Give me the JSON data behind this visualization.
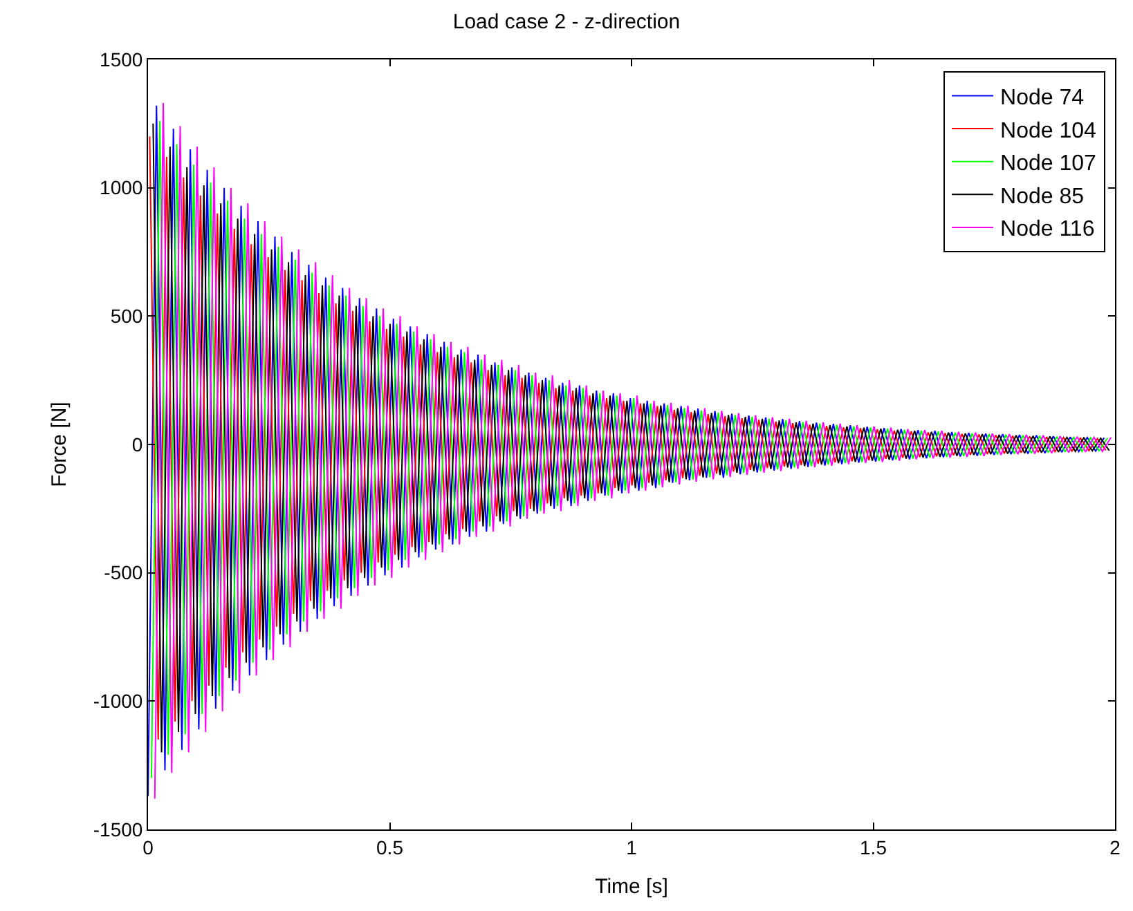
{
  "chart_data": {
    "type": "line",
    "title": "Load case 2 - z-direction",
    "xlabel": "Time [s]",
    "ylabel": "Force [N]",
    "xlim": [
      0,
      2
    ],
    "xticks": [
      0,
      0.5,
      1,
      1.5,
      2
    ],
    "ylim": [
      -1500,
      1500
    ],
    "yticks": [
      -1500,
      -1000,
      -500,
      0,
      500,
      1000,
      1500
    ],
    "grid": false,
    "legend": "top right",
    "marker": "none",
    "line_style": "solid",
    "series": [
      {
        "name": "Node 74",
        "color": "#0000ff",
        "x": [
          0,
          0.0175,
          0.035,
          0.0525,
          0.07,
          0.0875,
          0.105,
          0.1225,
          0.14,
          0.1575,
          0.175,
          0.1925,
          0.21,
          0.2275,
          0.245,
          0.2625,
          0.28,
          0.2975,
          0.315,
          0.3325,
          0.35,
          0.3675,
          0.385,
          0.4025,
          0.42,
          0.4375,
          0.455,
          0.4725,
          0.49,
          0.5075,
          0.525,
          0.5425,
          0.56,
          0.5775,
          0.595,
          0.6125,
          0.63,
          0.6475,
          0.665,
          0.6825,
          0.7,
          0.7175,
          0.735,
          0.7525,
          0.77,
          0.7875,
          0.805,
          0.8225,
          0.84,
          0.8575,
          0.875,
          0.8925,
          0.91,
          0.9275,
          0.945,
          0.9625,
          0.98,
          0.9975,
          1.015,
          1.0325,
          1.05,
          1.0675,
          1.085,
          1.1025,
          1.12,
          1.1375,
          1.155,
          1.1725,
          1.19,
          1.2075,
          1.225,
          1.2425,
          1.26,
          1.2775,
          1.295,
          1.3125,
          1.33,
          1.3475,
          1.365,
          1.3825,
          1.4,
          1.4175,
          1.435,
          1.4525,
          1.47,
          1.4875,
          1.505,
          1.5225,
          1.54,
          1.5575,
          1.575,
          1.5925,
          1.61,
          1.6275,
          1.645,
          1.6625,
          1.68,
          1.6975,
          1.715,
          1.7325,
          1.75,
          1.7675,
          1.785,
          1.8025,
          1.82,
          1.8375,
          1.855,
          1.8725,
          1.89,
          1.9075,
          1.925,
          1.9425,
          1.96,
          1.9775
        ],
        "values": [
          -1370,
          1320,
          -1270,
          1230,
          -1190,
          1150,
          -1110,
          1070,
          -1030,
          1000,
          -960,
          930,
          -900,
          870,
          -840,
          810,
          -780,
          750,
          -730,
          700,
          -680,
          650,
          -630,
          610,
          -590,
          570,
          -550,
          530,
          -510,
          490,
          -480,
          460,
          -440,
          430,
          -410,
          400,
          -390,
          370,
          -360,
          350,
          -340,
          320,
          -310,
          300,
          -290,
          280,
          -270,
          260,
          -250,
          240,
          -240,
          230,
          -220,
          210,
          -200,
          200,
          -190,
          180,
          -180,
          170,
          -170,
          160,
          -150,
          150,
          -140,
          140,
          -130,
          130,
          -130,
          120,
          -117,
          113,
          -109,
          105,
          -102,
          99,
          -95,
          91,
          -88,
          85,
          -82,
          80,
          -77,
          75,
          -71,
          69,
          -67,
          64,
          -62,
          60,
          -58,
          56,
          -54,
          53,
          -50,
          48,
          -47,
          45,
          -44,
          42,
          -41,
          40,
          -38,
          37,
          -36,
          35,
          -34,
          32,
          -30,
          29,
          -28,
          27,
          -26,
          26
        ]
      },
      {
        "name": "Node 104",
        "color": "#ff0000",
        "x": [
          0.0035,
          0.021,
          0.0385,
          0.056,
          0.0735,
          0.091,
          0.1085,
          0.126,
          0.1435,
          0.161,
          0.1785,
          0.196,
          0.2135,
          0.231,
          0.2485,
          0.266,
          0.2835,
          0.301,
          0.3185,
          0.336,
          0.3535,
          0.371,
          0.3885,
          0.406,
          0.4235,
          0.441,
          0.4585,
          0.476,
          0.4935,
          0.511,
          0.5285,
          0.546,
          0.5635,
          0.581,
          0.5985,
          0.616,
          0.6335,
          0.651,
          0.6685,
          0.686,
          0.7035,
          0.721,
          0.7385,
          0.756,
          0.7735,
          0.791,
          0.8085,
          0.826,
          0.8435,
          0.861,
          0.8785,
          0.896,
          0.9135,
          0.931,
          0.9485,
          0.966,
          0.9835,
          1.001,
          1.0185,
          1.036,
          1.0535,
          1.071,
          1.0885,
          1.106,
          1.1235,
          1.141,
          1.1585,
          1.176,
          1.1935,
          1.211,
          1.2285,
          1.246,
          1.2635,
          1.281,
          1.2985,
          1.316,
          1.3335,
          1.351,
          1.3685,
          1.386,
          1.4035,
          1.421,
          1.4385,
          1.456,
          1.4735,
          1.491,
          1.5085,
          1.526,
          1.5435,
          1.561,
          1.5785,
          1.596,
          1.6135,
          1.631,
          1.6485,
          1.666,
          1.6835,
          1.701,
          1.7185,
          1.736,
          1.7535,
          1.771,
          1.7885,
          1.806,
          1.8235,
          1.841,
          1.8585,
          1.876,
          1.8935,
          1.911,
          1.9285,
          1.946,
          1.9635,
          1.981
        ],
        "values": [
          1200,
          -1150,
          1120,
          -1080,
          1040,
          -1000,
          970,
          -940,
          900,
          -870,
          840,
          -810,
          780,
          -760,
          730,
          -710,
          680,
          -660,
          640,
          -610,
          590,
          -570,
          550,
          -530,
          520,
          -500,
          480,
          -460,
          450,
          -430,
          420,
          -400,
          390,
          -380,
          360,
          -350,
          340,
          -330,
          320,
          -300,
          290,
          -280,
          270,
          -260,
          260,
          -250,
          240,
          -230,
          220,
          -210,
          210,
          -200,
          190,
          -190,
          180,
          -170,
          170,
          -160,
          160,
          -150,
          150,
          -140,
          135,
          -131,
          126,
          -122,
          118,
          -114,
          110,
          -106,
          102,
          -99,
          96,
          -92,
          89,
          -86,
          83,
          -80,
          77,
          -75,
          72,
          -70,
          67,
          -65,
          63,
          -61,
          59,
          -56,
          54,
          -52,
          51,
          -49,
          47,
          -46,
          44,
          -42,
          41,
          -40,
          39,
          -37,
          36,
          -35,
          33,
          -32,
          31,
          -30,
          29,
          -28,
          27,
          -26,
          25,
          -24,
          23,
          -23
        ]
      },
      {
        "name": "Node 107",
        "color": "#00ff00",
        "x": [
          0.007,
          0.0245,
          0.042,
          0.0595,
          0.077,
          0.0945,
          0.112,
          0.1295,
          0.147,
          0.1645,
          0.182,
          0.1995,
          0.217,
          0.2345,
          0.252,
          0.2695,
          0.287,
          0.3045,
          0.322,
          0.3395,
          0.357,
          0.3745,
          0.392,
          0.4095,
          0.427,
          0.4445,
          0.462,
          0.4795,
          0.497,
          0.5145,
          0.532,
          0.5495,
          0.567,
          0.5845,
          0.602,
          0.6195,
          0.637,
          0.6545,
          0.672,
          0.6895,
          0.707,
          0.7245,
          0.742,
          0.7595,
          0.777,
          0.7945,
          0.812,
          0.8295,
          0.847,
          0.8645,
          0.882,
          0.8995,
          0.917,
          0.9345,
          0.952,
          0.9695,
          0.987,
          1.0045,
          1.022,
          1.0395,
          1.057,
          1.0745,
          1.092,
          1.1095,
          1.127,
          1.1445,
          1.162,
          1.1795,
          1.197,
          1.2145,
          1.232,
          1.2495,
          1.267,
          1.2845,
          1.302,
          1.3195,
          1.337,
          1.3545,
          1.372,
          1.3895,
          1.407,
          1.4245,
          1.442,
          1.4595,
          1.477,
          1.4945,
          1.512,
          1.5295,
          1.547,
          1.5645,
          1.582,
          1.5995,
          1.617,
          1.6345,
          1.652,
          1.6695,
          1.687,
          1.7045,
          1.722,
          1.7395,
          1.757,
          1.7745,
          1.792,
          1.8095,
          1.827,
          1.8445,
          1.862,
          1.8795,
          1.897,
          1.9145,
          1.932,
          1.9495,
          1.967,
          1.9845
        ],
        "values": [
          -1300,
          1260,
          -1210,
          1170,
          -1130,
          1090,
          -1050,
          1020,
          -980,
          950,
          -920,
          880,
          -850,
          820,
          -800,
          770,
          -740,
          720,
          -690,
          670,
          -650,
          620,
          -600,
          580,
          -560,
          540,
          -520,
          500,
          -490,
          470,
          -450,
          440,
          -420,
          410,
          -390,
          380,
          -370,
          360,
          -340,
          330,
          -320,
          310,
          -300,
          290,
          -280,
          270,
          -260,
          250,
          -240,
          230,
          -230,
          220,
          -210,
          200,
          -200,
          190,
          -180,
          180,
          -170,
          160,
          -158,
          153,
          -147,
          142,
          -137,
          133,
          -128,
          124,
          -120,
          115,
          -111,
          108,
          -104,
          100,
          -97,
          94,
          -90,
          87,
          -84,
          81,
          -78,
          76,
          -73,
          71,
          -68,
          66,
          -64,
          61,
          -59,
          57,
          -55,
          53,
          -51,
          50,
          -48,
          46,
          -45,
          43,
          -42,
          40,
          -39,
          38,
          -36,
          35,
          -34,
          33,
          -32,
          30,
          -29,
          28,
          -27,
          26,
          -25,
          25
        ]
      },
      {
        "name": "Node 85",
        "color": "#000000",
        "x": [
          0.0105,
          0.028,
          0.0455,
          0.063,
          0.0805,
          0.098,
          0.1155,
          0.133,
          0.1505,
          0.168,
          0.1855,
          0.203,
          0.2205,
          0.238,
          0.2555,
          0.273,
          0.2905,
          0.308,
          0.3255,
          0.343,
          0.3605,
          0.378,
          0.3955,
          0.413,
          0.4305,
          0.448,
          0.4655,
          0.483,
          0.5005,
          0.518,
          0.5355,
          0.553,
          0.5705,
          0.588,
          0.6055,
          0.623,
          0.6405,
          0.658,
          0.6755,
          0.693,
          0.7105,
          0.728,
          0.7455,
          0.763,
          0.7805,
          0.798,
          0.8155,
          0.833,
          0.8505,
          0.868,
          0.8855,
          0.903,
          0.9205,
          0.938,
          0.9555,
          0.973,
          0.9905,
          1.008,
          1.0255,
          1.043,
          1.0605,
          1.078,
          1.0955,
          1.113,
          1.1305,
          1.148,
          1.1655,
          1.183,
          1.2005,
          1.218,
          1.2355,
          1.253,
          1.2705,
          1.288,
          1.3055,
          1.323,
          1.3405,
          1.358,
          1.3755,
          1.393,
          1.4105,
          1.428,
          1.4455,
          1.463,
          1.4805,
          1.498,
          1.5155,
          1.533,
          1.5505,
          1.568,
          1.5855,
          1.603,
          1.6205,
          1.638,
          1.6555,
          1.673,
          1.6905,
          1.708,
          1.7255,
          1.743,
          1.7605,
          1.778,
          1.7955,
          1.813,
          1.8305,
          1.848,
          1.8655,
          1.883,
          1.9005,
          1.918,
          1.9355,
          1.953,
          1.9705,
          1.988
        ],
        "values": [
          1250,
          -1200,
          1160,
          -1120,
          1080,
          -1050,
          1010,
          -980,
          940,
          -910,
          880,
          -850,
          820,
          -790,
          760,
          -740,
          710,
          -690,
          660,
          -640,
          620,
          -600,
          580,
          -560,
          540,
          -520,
          500,
          -480,
          470,
          -450,
          440,
          -420,
          410,
          -390,
          380,
          -370,
          350,
          -340,
          330,
          -320,
          310,
          -300,
          290,
          -280,
          270,
          -260,
          250,
          -240,
          230,
          -220,
          220,
          -210,
          200,
          -190,
          190,
          -180,
          170,
          -170,
          160,
          -160,
          152,
          -147,
          141,
          -136,
          132,
          -128,
          123,
          -119,
          115,
          -110,
          107,
          -104,
          100,
          -96,
          93,
          -90,
          86,
          -84,
          81,
          -78,
          75,
          -73,
          70,
          -68,
          65,
          -63,
          61,
          -59,
          57,
          -55,
          53,
          -51,
          49,
          -48,
          46,
          -44,
          43,
          -41,
          40,
          -38,
          37,
          -36,
          35,
          -34,
          33,
          -32,
          31,
          -29,
          28,
          -27,
          26,
          -25,
          24,
          -24
        ]
      },
      {
        "name": "Node 116",
        "color": "#ff00ff",
        "x": [
          0.014,
          0.0315,
          0.049,
          0.0665,
          0.084,
          0.1015,
          0.119,
          0.1365,
          0.154,
          0.1715,
          0.189,
          0.2065,
          0.224,
          0.2415,
          0.259,
          0.2765,
          0.294,
          0.3115,
          0.329,
          0.3465,
          0.364,
          0.3815,
          0.399,
          0.4165,
          0.434,
          0.4515,
          0.469,
          0.4865,
          0.504,
          0.5215,
          0.539,
          0.5565,
          0.574,
          0.5915,
          0.609,
          0.6265,
          0.644,
          0.6615,
          0.679,
          0.6965,
          0.714,
          0.7315,
          0.749,
          0.7665,
          0.784,
          0.8015,
          0.819,
          0.8365,
          0.854,
          0.8715,
          0.889,
          0.9065,
          0.924,
          0.9415,
          0.959,
          0.9765,
          0.994,
          1.0115,
          1.029,
          1.0465,
          1.064,
          1.0815,
          1.099,
          1.1165,
          1.134,
          1.1515,
          1.169,
          1.1865,
          1.204,
          1.2215,
          1.239,
          1.2565,
          1.274,
          1.2915,
          1.309,
          1.3265,
          1.344,
          1.3615,
          1.379,
          1.3965,
          1.414,
          1.4315,
          1.449,
          1.4665,
          1.484,
          1.5015,
          1.519,
          1.5365,
          1.554,
          1.5715,
          1.589,
          1.6065,
          1.624,
          1.6415,
          1.659,
          1.6765,
          1.694,
          1.7115,
          1.729,
          1.7465,
          1.764,
          1.7815,
          1.799,
          1.8165,
          1.834,
          1.8515,
          1.869,
          1.8865,
          1.904,
          1.9215,
          1.939,
          1.9565,
          1.974,
          1.9915
        ],
        "values": [
          -1380,
          1330,
          -1280,
          1240,
          -1200,
          1160,
          -1120,
          1080,
          -1040,
          1000,
          -970,
          940,
          -900,
          870,
          -840,
          810,
          -790,
          760,
          -730,
          710,
          -680,
          660,
          -640,
          610,
          -590,
          570,
          -550,
          530,
          -520,
          500,
          -480,
          460,
          -450,
          430,
          -420,
          400,
          -390,
          380,
          -360,
          350,
          -340,
          330,
          -320,
          310,
          -290,
          280,
          -270,
          270,
          -260,
          250,
          -240,
          230,
          -220,
          210,
          -210,
          200,
          -190,
          190,
          -180,
          170,
          -167,
          162,
          -156,
          151,
          -145,
          141,
          -136,
          131,
          -127,
          122,
          -118,
          114,
          -110,
          106,
          -103,
          100,
          -95,
          92,
          -89,
          86,
          -83,
          81,
          -77,
          75,
          -72,
          70,
          -68,
          65,
          -63,
          60,
          -58,
          56,
          -54,
          53,
          -51,
          49,
          -48,
          46,
          -45,
          42,
          -41,
          40,
          -38,
          37,
          -36,
          35,
          -34,
          32,
          -31,
          30,
          -29,
          28,
          -27,
          27
        ]
      }
    ]
  }
}
